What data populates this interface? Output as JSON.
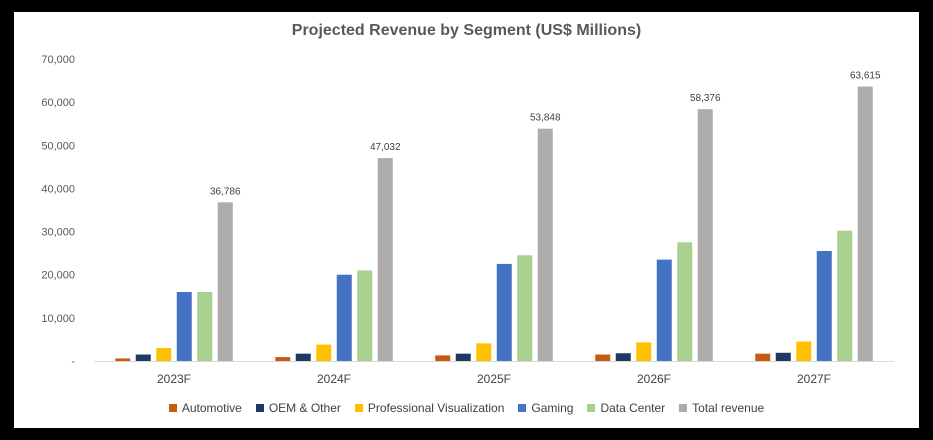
{
  "chart_data": {
    "type": "bar",
    "title": "Projected Revenue by Segment (US$ Millions)",
    "xlabel": "",
    "ylabel": "",
    "ylim": [
      0,
      70000
    ],
    "yticks": [
      "-",
      "10,000",
      "20,000",
      "30,000",
      "40,000",
      "50,000",
      "60,000",
      "70,000"
    ],
    "ytick_values": [
      0,
      10000,
      20000,
      30000,
      40000,
      50000,
      60000,
      70000
    ],
    "grid": false,
    "legend_position": "bottom",
    "categories": [
      "2023F",
      "2024F",
      "2025F",
      "2026F",
      "2027F"
    ],
    "series": [
      {
        "name": "Automotive",
        "color": "#C55A11",
        "values": [
          600,
          900,
          1300,
          1500,
          1700
        ]
      },
      {
        "name": "OEM & Other",
        "color": "#1F3864",
        "values": [
          1500,
          1700,
          1700,
          1800,
          1900
        ]
      },
      {
        "name": "Professional Visualization",
        "color": "#FFC000",
        "values": [
          3000,
          3800,
          4100,
          4300,
          4500
        ]
      },
      {
        "name": "Gaming",
        "color": "#4472C4",
        "values": [
          16000,
          20000,
          22500,
          23500,
          25500
        ]
      },
      {
        "name": "Data Center",
        "color": "#A9D18E",
        "values": [
          16000,
          21000,
          24500,
          27500,
          30200
        ]
      },
      {
        "name": "Total revenue",
        "color": "#AFABAB",
        "values": [
          36786,
          47032,
          53848,
          58376,
          63615
        ]
      }
    ],
    "data_labels": {
      "series": "Total revenue",
      "labels": [
        "36,786",
        "47,032",
        "53,848",
        "58,376",
        "63,615"
      ]
    }
  }
}
